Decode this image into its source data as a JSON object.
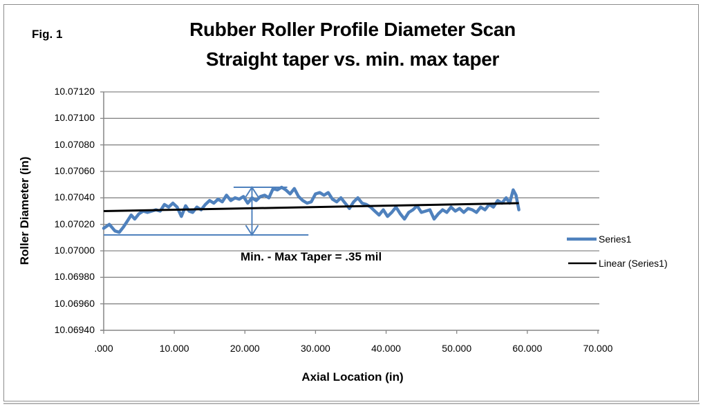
{
  "figure_label": "Fig. 1",
  "title_line1": "Rubber Roller Profile  Diameter Scan",
  "title_line2": "Straight taper vs. min. max taper",
  "annotation": "Min. - Max Taper = .35 mil",
  "colors": {
    "series1": "#4f81bd",
    "linear": "#000000",
    "grid": "#868686",
    "annotation_lines": "#4f81bd"
  },
  "chart_data": {
    "type": "line",
    "title": "Rubber Roller Profile  Diameter Scan / Straight taper vs. min. max taper",
    "xlabel": "Axial Location (in)",
    "ylabel": "Roller Diameter (in)",
    "xlim": [
      0,
      70
    ],
    "ylim": [
      10.0694,
      10.0712
    ],
    "grid": "horizontal major gridlines",
    "legend_position": "right",
    "x_ticks": [
      ".000",
      "10.000",
      "20.000",
      "30.000",
      "40.000",
      "50.000",
      "60.000",
      "70.000"
    ],
    "y_ticks": [
      "10.07120",
      "10.07100",
      "10.07080",
      "10.07060",
      "10.07040",
      "10.07020",
      "10.07000",
      "10.06980",
      "10.06960",
      "10.06940"
    ],
    "legend": [
      "Series1",
      "Linear (Series1)"
    ],
    "series": [
      {
        "name": "Series1",
        "x": [
          0.0,
          0.8,
          1.6,
          2.2,
          2.8,
          3.3,
          3.9,
          4.4,
          5.0,
          5.6,
          6.2,
          6.8,
          7.4,
          8.0,
          8.6,
          9.2,
          9.8,
          10.4,
          11.0,
          11.6,
          12.1,
          12.6,
          13.2,
          13.8,
          14.4,
          15.0,
          15.6,
          16.2,
          16.8,
          17.4,
          18.0,
          18.6,
          19.2,
          19.8,
          20.4,
          21.0,
          21.6,
          22.2,
          22.8,
          23.4,
          24.0,
          24.6,
          25.2,
          25.8,
          26.4,
          27.0,
          27.6,
          28.2,
          28.8,
          29.4,
          30.0,
          30.6,
          31.2,
          31.8,
          32.4,
          33.0,
          33.6,
          34.2,
          34.8,
          35.4,
          36.0,
          36.6,
          37.2,
          37.8,
          38.4,
          39.0,
          39.6,
          40.2,
          40.8,
          41.4,
          42.0,
          42.6,
          43.2,
          43.8,
          44.4,
          45.0,
          45.6,
          46.2,
          46.8,
          47.4,
          48.0,
          48.6,
          49.2,
          49.8,
          50.4,
          51.0,
          51.6,
          52.2,
          52.8,
          53.4,
          54.0,
          54.6,
          55.2,
          55.8,
          56.4,
          57.0,
          57.5,
          58.0,
          58.4,
          58.8
        ],
        "values": [
          10.07017,
          10.0702,
          10.07015,
          10.07014,
          10.07018,
          10.07022,
          10.07027,
          10.07024,
          10.07028,
          10.0703,
          10.07029,
          10.0703,
          10.07031,
          10.0703,
          10.07035,
          10.07033,
          10.07036,
          10.07033,
          10.07026,
          10.07034,
          10.0703,
          10.07029,
          10.07033,
          10.07031,
          10.07035,
          10.07038,
          10.07036,
          10.07039,
          10.07037,
          10.07042,
          10.07038,
          10.0704,
          10.07039,
          10.07041,
          10.07036,
          10.0704,
          10.07038,
          10.07041,
          10.07042,
          10.0704,
          10.07047,
          10.07046,
          10.07048,
          10.07046,
          10.07043,
          10.07047,
          10.07041,
          10.07038,
          10.07036,
          10.07037,
          10.07043,
          10.07044,
          10.07042,
          10.07044,
          10.07039,
          10.07037,
          10.0704,
          10.07036,
          10.07032,
          10.07037,
          10.0704,
          10.07036,
          10.07035,
          10.07033,
          10.0703,
          10.07027,
          10.07031,
          10.07026,
          10.07029,
          10.07033,
          10.07028,
          10.07024,
          10.07029,
          10.07031,
          10.07034,
          10.07029,
          10.0703,
          10.07031,
          10.07024,
          10.07028,
          10.07031,
          10.07029,
          10.07033,
          10.0703,
          10.07032,
          10.07029,
          10.07032,
          10.07031,
          10.07029,
          10.07033,
          10.07031,
          10.07035,
          10.07033,
          10.07038,
          10.07036,
          10.0704,
          10.07036,
          10.07046,
          10.07042,
          10.07031
        ]
      },
      {
        "name": "Linear (Series1)",
        "x": [
          0.0,
          58.8
        ],
        "values": [
          10.0703,
          10.07036
        ]
      }
    ],
    "annotations": [
      {
        "type": "hline",
        "label": "min",
        "value": 10.07012,
        "x_range": [
          0.0,
          29.0
        ]
      },
      {
        "type": "hline",
        "label": "max",
        "value": 10.07048,
        "x_range": [
          18.4,
          26.0
        ]
      },
      {
        "type": "double-arrow",
        "x": 21.0,
        "from": 10.07012,
        "to": 10.07048
      },
      {
        "type": "text",
        "text": "Min. - Max Taper = .35 mil"
      }
    ]
  }
}
